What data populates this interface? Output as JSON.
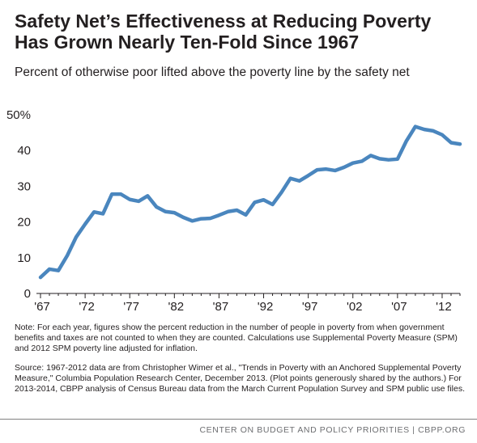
{
  "header": {
    "title_line1": "Safety Net’s Effectiveness at Reducing Poverty",
    "title_line2": "Has Grown Nearly Ten-Fold Since 1967",
    "subtitle": "Percent of otherwise poor lifted above the poverty line by the safety net"
  },
  "chart_data": {
    "type": "line",
    "title": "",
    "xlabel": "",
    "ylabel": "",
    "x": [
      1967,
      1968,
      1969,
      1970,
      1971,
      1972,
      1973,
      1974,
      1975,
      1976,
      1977,
      1978,
      1979,
      1980,
      1981,
      1982,
      1983,
      1984,
      1985,
      1986,
      1987,
      1988,
      1989,
      1990,
      1991,
      1992,
      1993,
      1994,
      1995,
      1996,
      1997,
      1998,
      1999,
      2000,
      2001,
      2002,
      2003,
      2004,
      2005,
      2006,
      2007,
      2008,
      2009,
      2010,
      2011,
      2012,
      2013,
      2014
    ],
    "series": [
      {
        "name": "",
        "values": [
          4.5,
          6.8,
          6.4,
          10.6,
          15.8,
          19.4,
          22.8,
          22.3,
          27.8,
          27.8,
          26.3,
          25.8,
          27.3,
          24.2,
          22.9,
          22.6,
          21.3,
          20.3,
          20.9,
          21.0,
          21.9,
          22.9,
          23.3,
          22.0,
          25.5,
          26.2,
          24.9,
          28.3,
          32.2,
          31.5,
          33.0,
          34.6,
          34.8,
          34.4,
          35.3,
          36.5,
          37.0,
          38.6,
          37.7,
          37.4,
          37.6,
          42.7,
          46.7,
          45.9,
          45.5,
          44.4,
          42.2,
          41.8
        ]
      }
    ],
    "xlim": [
      1967,
      2014
    ],
    "ylim": [
      0,
      50
    ],
    "x_ticks": [
      1967,
      1972,
      1977,
      1982,
      1987,
      1992,
      1997,
      2002,
      2007,
      2012
    ],
    "x_tick_labels": [
      "'67",
      "'72",
      "'77",
      "'82",
      "'87",
      "'92",
      "'97",
      "'02",
      "'07",
      "'12"
    ],
    "y_ticks": [
      0,
      10,
      20,
      30,
      40,
      50
    ],
    "y_tick_labels": [
      "0",
      "10",
      "20",
      "30",
      "40",
      "50%"
    ],
    "grid": false,
    "legend": "none",
    "line_color": "#4a86be",
    "axis_color": "#231f20"
  },
  "notes": {
    "note": "Note: For each year, figures show the percent reduction in the number of people in poverty from when government benefits and taxes are not counted to when they are counted. Calculations use Supplemental Poverty Measure (SPM) and 2012 SPM poverty line adjusted for inflation.",
    "source": "Source: 1967-2012 data are from Christopher Wimer et al., \"Trends in Poverty with an Anchored Supplemental Poverty Measure,\" Columbia Population Research Center, December 2013. (Plot points generously shared by the authors.) For 2013-2014, CBPP analysis of Census Bureau data from the March Current Population Survey and SPM public use files."
  },
  "footer": {
    "text": "CENTER ON BUDGET AND POLICY PRIORITIES | CBPP.ORG"
  }
}
